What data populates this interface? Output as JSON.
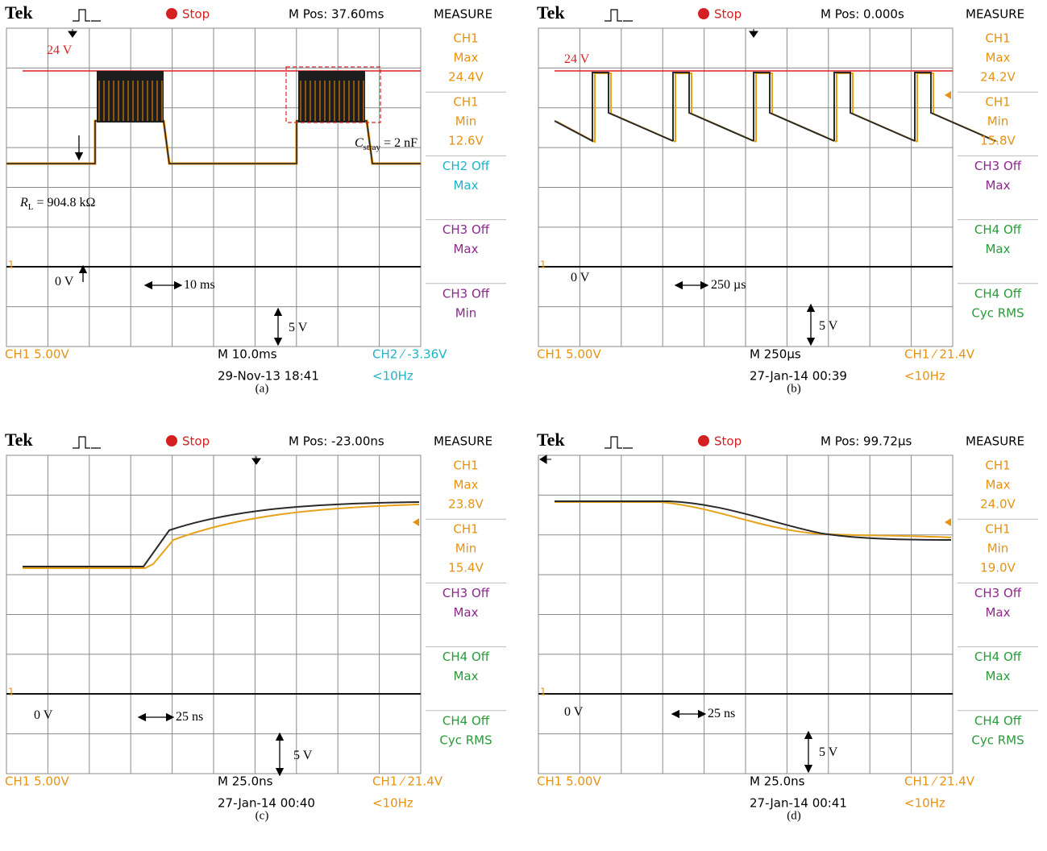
{
  "panels": [
    {
      "caption": "(a)",
      "header": {
        "brand": "Tek",
        "state": "Stop",
        "position": "M Pos: 37.60ms",
        "menu": "MEASURE"
      },
      "measures": [
        {
          "lines": [
            "CH1",
            "Max",
            "24.4V"
          ],
          "color": "#e8920f"
        },
        {
          "lines": [
            "CH1",
            "Min",
            "12.6V"
          ],
          "color": "#e8920f"
        },
        {
          "lines": [
            "CH2 Off",
            "Max"
          ],
          "color": "#1fb3c8"
        },
        {
          "lines": [
            "CH3 Off",
            "Max"
          ],
          "color": "#8b2a8b"
        },
        {
          "lines": [
            "CH3 Off",
            "Min"
          ],
          "color": "#8b2a8b"
        }
      ],
      "ground_marker": "1",
      "footer": {
        "scale": {
          "text": "CH1  5.00V",
          "color": "#e8920f"
        },
        "timebase": "M 10.0ms",
        "date": "29-Nov-13 18:41",
        "trigger": {
          "text": "CH2 ⁄ -3.36V",
          "color": "#1fb3c8"
        },
        "frequency": {
          "text": "<10Hz",
          "color": "#1fb3c8"
        }
      },
      "annotations": [
        {
          "text": "24 V",
          "color": "#e02020"
        },
        {
          "text": "C",
          "sub": "stray",
          "after": " = 2 nF",
          "color": "#000000"
        },
        {
          "text": "R",
          "sub": "L",
          "after": " = 904.8 kΩ",
          "color": "#000000"
        },
        {
          "text": "0 V",
          "color": "#000000"
        },
        {
          "text": "10 ms",
          "color": "#000000"
        },
        {
          "text": "5 V",
          "color": "#000000"
        }
      ]
    },
    {
      "caption": "(b)",
      "header": {
        "brand": "Tek",
        "state": "Stop",
        "position": "M Pos: 0.000s",
        "menu": "MEASURE"
      },
      "measures": [
        {
          "lines": [
            "CH1",
            "Max",
            "24.2V"
          ],
          "color": "#e8920f"
        },
        {
          "lines": [
            "CH1",
            "Min",
            "15.8V"
          ],
          "color": "#e8920f"
        },
        {
          "lines": [
            "CH3 Off",
            "Max"
          ],
          "color": "#8b2a8b"
        },
        {
          "lines": [
            "CH4 Off",
            "Max"
          ],
          "color": "#2a9a3a"
        },
        {
          "lines": [
            "CH4 Off",
            "Cyc RMS"
          ],
          "color": "#2a9a3a"
        }
      ],
      "ground_marker": "1",
      "footer": {
        "scale": {
          "text": "CH1  5.00V",
          "color": "#e8920f"
        },
        "timebase": "M 250µs",
        "date": "27-Jan-14 00:39",
        "trigger": {
          "text": "CH1 ⁄ 21.4V",
          "color": "#e8920f"
        },
        "frequency": {
          "text": "<10Hz",
          "color": "#e8920f"
        }
      },
      "annotations": [
        {
          "text": "24 V",
          "color": "#e02020"
        },
        {
          "text": "0 V",
          "color": "#000000"
        },
        {
          "text": "250 µs",
          "color": "#000000"
        },
        {
          "text": "5 V",
          "color": "#000000"
        }
      ]
    },
    {
      "caption": "(c)",
      "header": {
        "brand": "Tek",
        "state": "Stop",
        "position": "M Pos: -23.00ns",
        "menu": "MEASURE"
      },
      "measures": [
        {
          "lines": [
            "CH1",
            "Max",
            "23.8V"
          ],
          "color": "#e8920f"
        },
        {
          "lines": [
            "CH1",
            "Min",
            "15.4V"
          ],
          "color": "#e8920f"
        },
        {
          "lines": [
            "CH3 Off",
            "Max"
          ],
          "color": "#8b2a8b"
        },
        {
          "lines": [
            "CH4 Off",
            "Max"
          ],
          "color": "#2a9a3a"
        },
        {
          "lines": [
            "CH4 Off",
            "Cyc RMS"
          ],
          "color": "#2a9a3a"
        }
      ],
      "ground_marker": "1",
      "footer": {
        "scale": {
          "text": "CH1  5.00V",
          "color": "#e8920f"
        },
        "timebase": "M 25.0ns",
        "date": "27-Jan-14 00:40",
        "trigger": {
          "text": "CH1 ⁄ 21.4V",
          "color": "#e8920f"
        },
        "frequency": {
          "text": "<10Hz",
          "color": "#e8920f"
        }
      },
      "annotations": [
        {
          "text": "0 V",
          "color": "#000000"
        },
        {
          "text": "25 ns",
          "color": "#000000"
        },
        {
          "text": "5 V",
          "color": "#000000"
        }
      ]
    },
    {
      "caption": "(d)",
      "header": {
        "brand": "Tek",
        "state": "Stop",
        "position": "M Pos: 99.72µs",
        "menu": "MEASURE"
      },
      "measures": [
        {
          "lines": [
            "CH1",
            "Max",
            "24.0V"
          ],
          "color": "#e8920f"
        },
        {
          "lines": [
            "CH1",
            "Min",
            "19.0V"
          ],
          "color": "#e8920f"
        },
        {
          "lines": [
            "CH3 Off",
            "Max"
          ],
          "color": "#8b2a8b"
        },
        {
          "lines": [
            "CH4 Off",
            "Max"
          ],
          "color": "#2a9a3a"
        },
        {
          "lines": [
            "CH4 Off",
            "Cyc RMS"
          ],
          "color": "#2a9a3a"
        }
      ],
      "ground_marker": "1",
      "footer": {
        "scale": {
          "text": "CH1  5.00V",
          "color": "#e8920f"
        },
        "timebase": "M 25.0ns",
        "date": "27-Jan-14 00:41",
        "trigger": {
          "text": "CH1 ⁄ 21.4V",
          "color": "#e8920f"
        },
        "frequency": {
          "text": "<10Hz",
          "color": "#e8920f"
        }
      },
      "annotations": [
        {
          "text": "0 V",
          "color": "#000000"
        },
        {
          "text": "25 ns",
          "color": "#000000"
        },
        {
          "text": "5 V",
          "color": "#000000"
        }
      ]
    }
  ]
}
